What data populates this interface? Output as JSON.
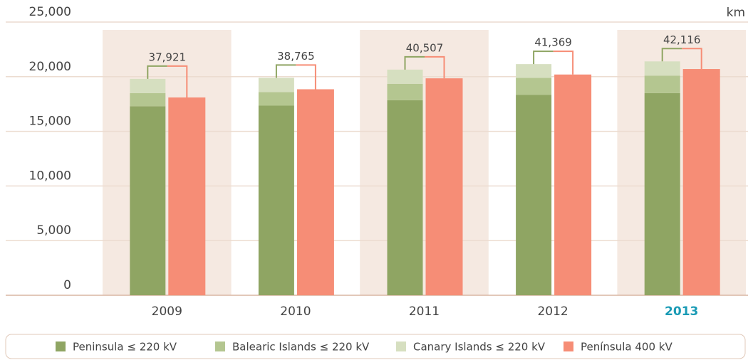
{
  "chart_data": {
    "type": "bar",
    "unit": "km",
    "categories": [
      "2009",
      "2010",
      "2011",
      "2012",
      "2013"
    ],
    "highlight_category": 4,
    "highlight_color": "#1a9bb5",
    "series": [
      {
        "name": "Peninsula ≤ 220 kV",
        "color": "#8fa563",
        "stack": "a",
        "values": [
          17300,
          17350,
          17850,
          18350,
          18500
        ]
      },
      {
        "name": "Balearic Islands ≤ 220 kV",
        "color": "#b4c690",
        "stack": "a",
        "values": [
          1200,
          1250,
          1500,
          1550,
          1600
        ]
      },
      {
        "name": "Canary Islands ≤ 220 kV",
        "color": "#d6dfc0",
        "stack": "a",
        "values": [
          1300,
          1300,
          1300,
          1250,
          1300
        ]
      },
      {
        "name": "Península 400 kV",
        "color": "#f68d76",
        "stack": "b",
        "values": [
          18100,
          18850,
          19850,
          20200,
          20700
        ]
      }
    ],
    "total_labels": [
      "37,921",
      "38,765",
      "40,507",
      "41,369",
      "42,116"
    ],
    "ylim": [
      0,
      25000
    ],
    "yticks": [
      {
        "value": 0,
        "label": "0"
      },
      {
        "value": 5000,
        "label": "5,000"
      },
      {
        "value": 10000,
        "label": "10,000"
      },
      {
        "value": 15000,
        "label": "15,000"
      },
      {
        "value": 20000,
        "label": "20,000"
      },
      {
        "value": 25000,
        "label": "25,000"
      }
    ],
    "grid": true
  }
}
